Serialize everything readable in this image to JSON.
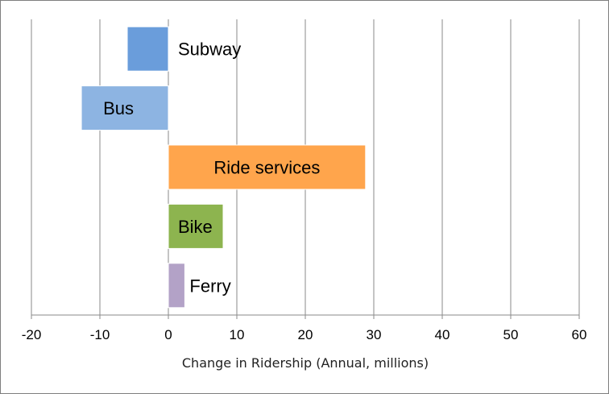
{
  "chart_data": {
    "type": "bar",
    "orientation": "horizontal",
    "title": "",
    "categories": [
      "Subway",
      "Bus",
      "Ride services",
      "Bike",
      "Ferry"
    ],
    "values": [
      -6,
      -12.7,
      28.8,
      8,
      2.4
    ],
    "colors": [
      "#6a9ddb",
      "#8db4e2",
      "#ffa54c",
      "#8db44f",
      "#b3a2c7"
    ],
    "xlabel": "Change in Ridership (Annual, millions)",
    "ylabel": "",
    "xlim": [
      -20,
      60
    ],
    "xticks": [
      -20,
      -10,
      0,
      10,
      20,
      30,
      40,
      50,
      60
    ],
    "grid": true
  }
}
